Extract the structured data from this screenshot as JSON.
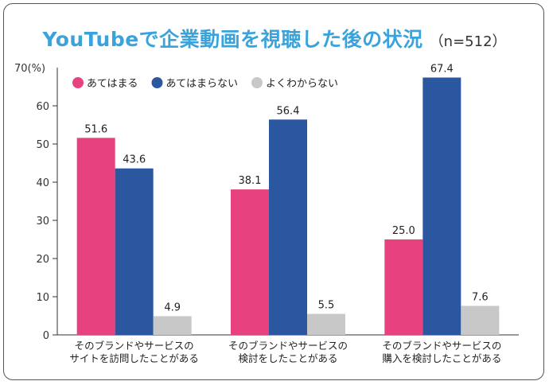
{
  "chart_data": {
    "type": "bar",
    "title": "YouTubeで企業動画を視聴した後の状況",
    "subtitle": "（n=512）",
    "ylabel": "70(%)",
    "ylim": [
      0,
      70
    ],
    "yticks": [
      0,
      10,
      20,
      30,
      40,
      50,
      60
    ],
    "categories": [
      [
        "そのブランドやサービスの",
        "サイトを訪問したことがある"
      ],
      [
        "そのブランドやサービスの",
        "検討をしたことがある"
      ],
      [
        "そのブランドやサービスの",
        "購入を検討したことがある"
      ]
    ],
    "series": [
      {
        "name": "あてはまる",
        "color": "#e8417f",
        "values": [
          51.6,
          38.1,
          25.0
        ],
        "labels": [
          "51.6",
          "38.1",
          "25.0"
        ]
      },
      {
        "name": "あてはまらない",
        "color": "#2a57a0",
        "values": [
          43.6,
          56.4,
          67.4
        ],
        "labels": [
          "43.6",
          "56.4",
          "67.4"
        ]
      },
      {
        "name": "よくわからない",
        "color": "#c8c8c8",
        "values": [
          4.9,
          5.5,
          7.6
        ],
        "labels": [
          "4.9",
          "5.5",
          "7.6"
        ]
      }
    ],
    "legend": "top-left",
    "grid": false
  }
}
